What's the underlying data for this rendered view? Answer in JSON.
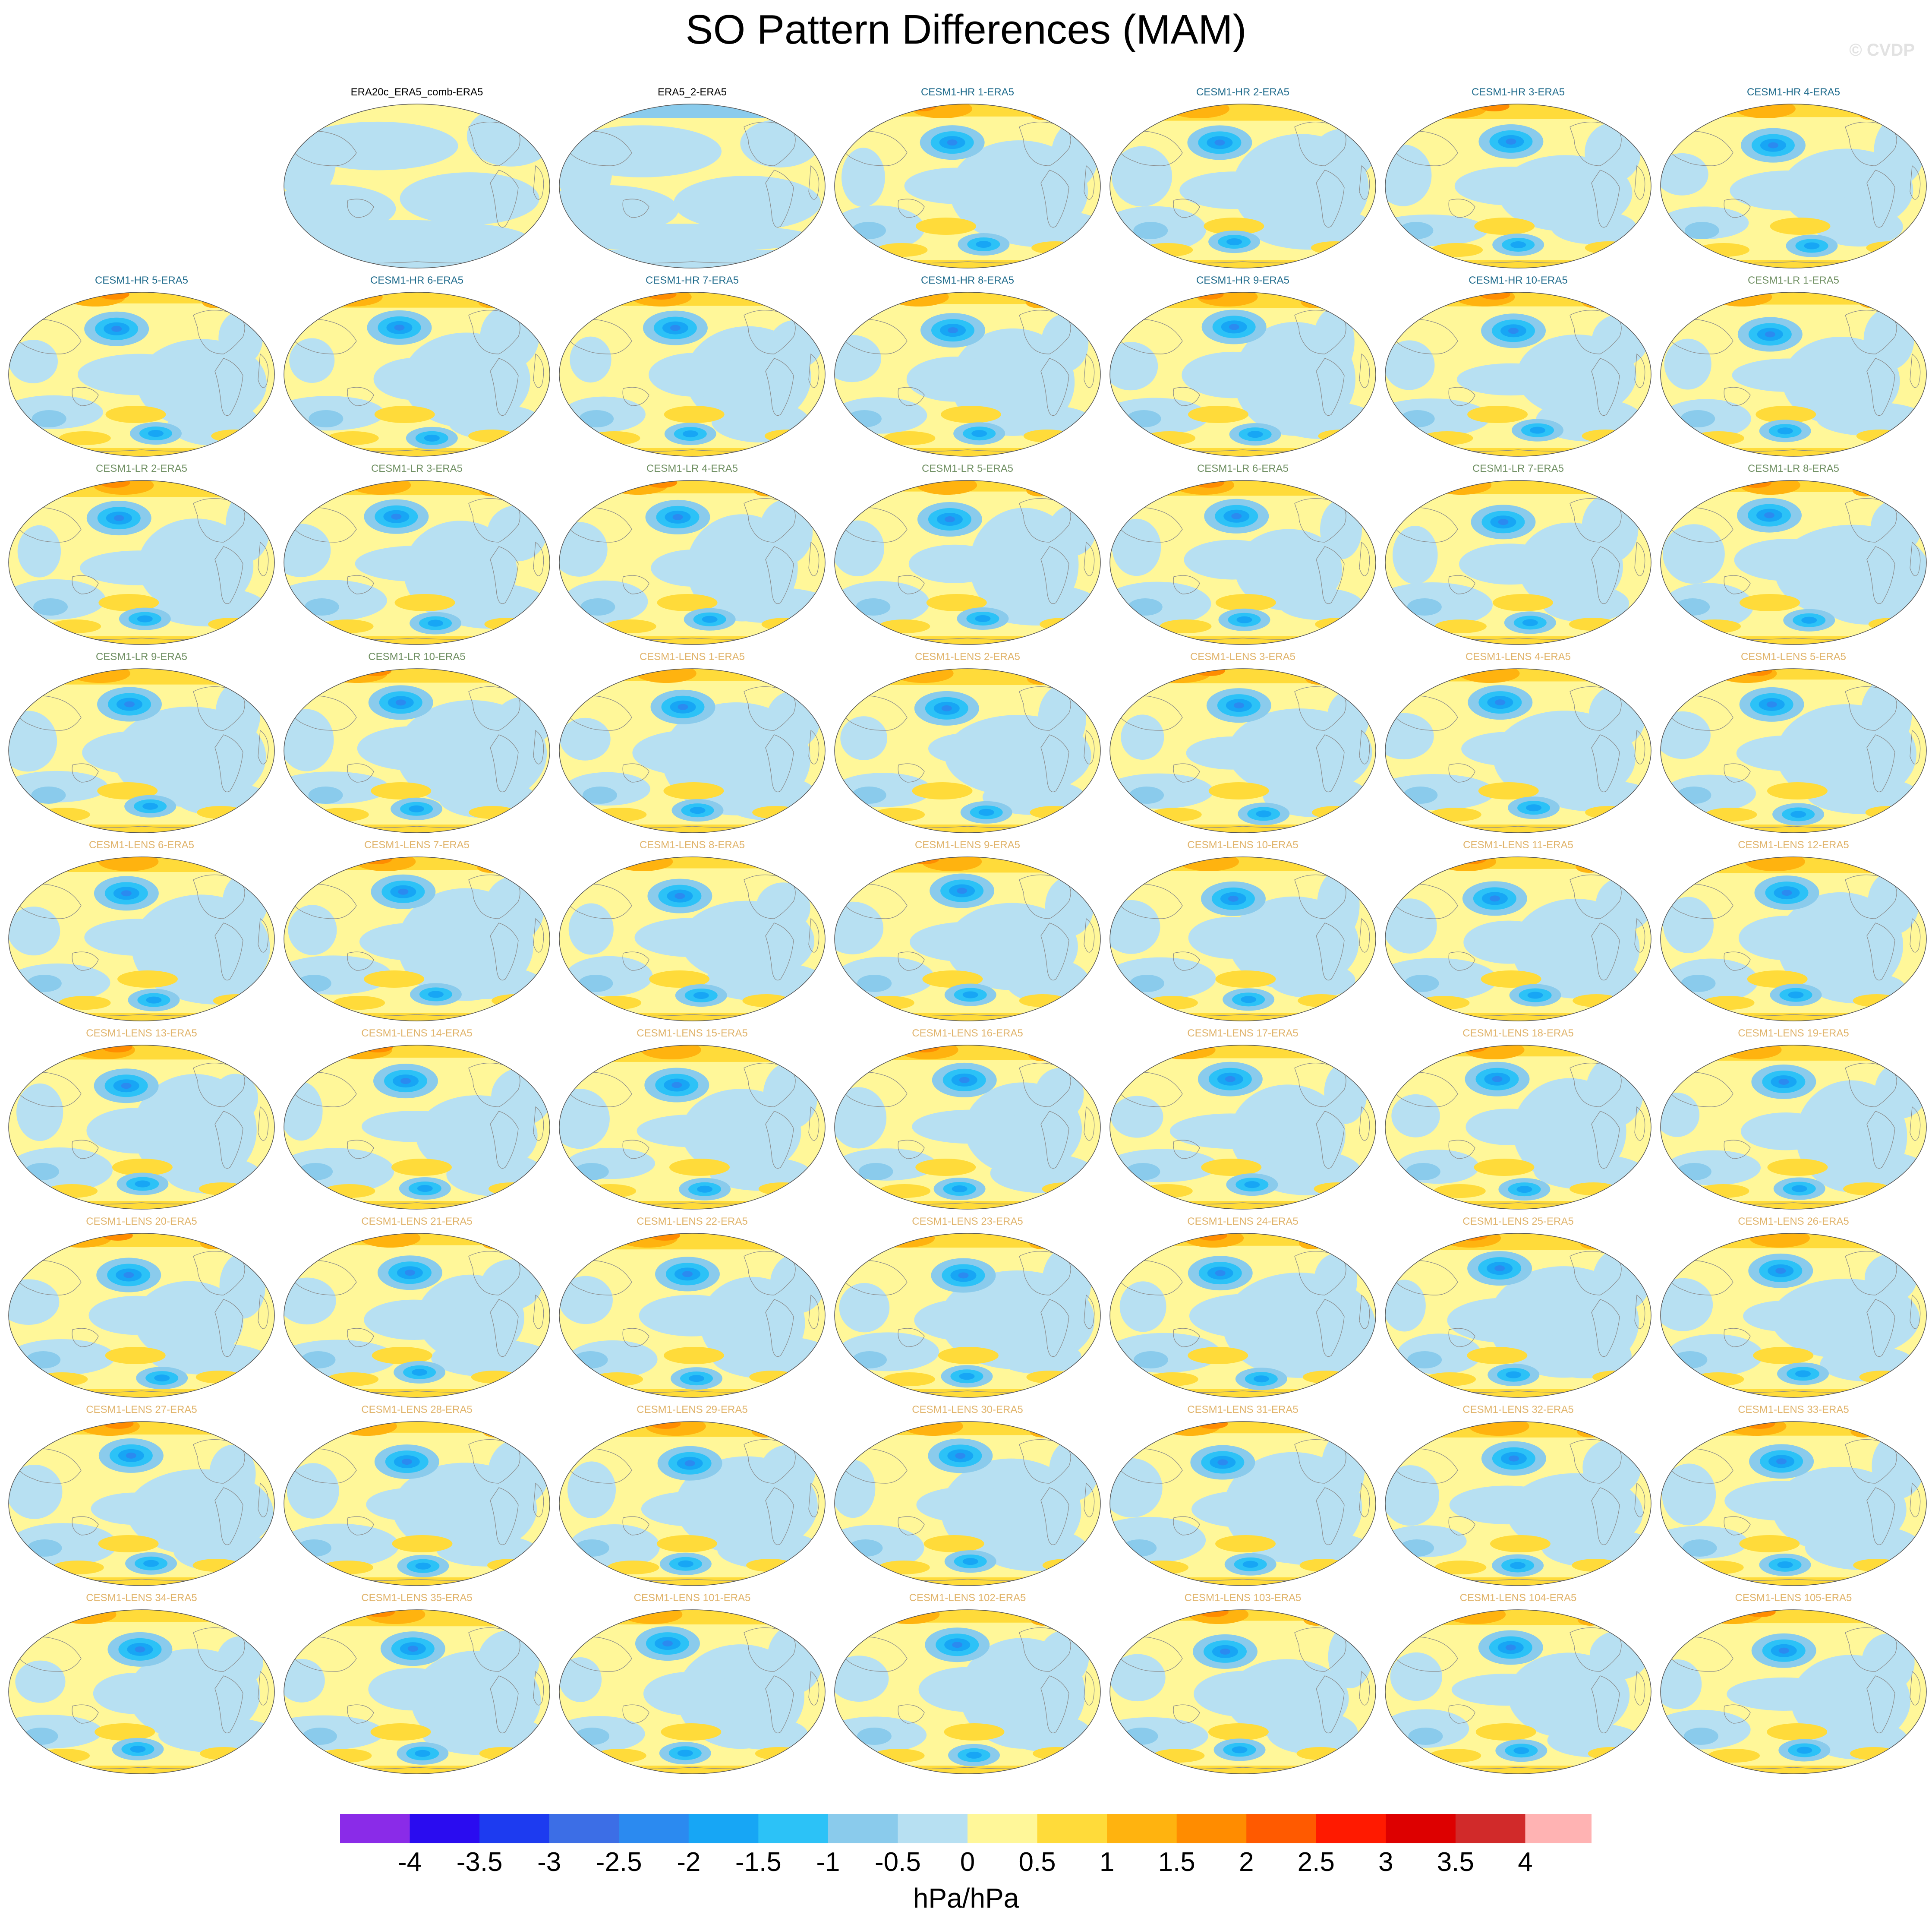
{
  "figure": {
    "title": "SO Pattern Differences (MAM)",
    "credit": "© CVDP"
  },
  "chart_data": {
    "type": "heatmap",
    "title": "SO Pattern Differences (MAM)",
    "variable_units": "hPa/hPa",
    "map_projection": "global robinson-like, Pacific centered",
    "grid": false,
    "legend": "bottom horizontal colorbar",
    "panels": [
      {
        "label": "ERA20c_ERA5_comb-ERA5",
        "group": "obs"
      },
      {
        "label": "ERA5_2-ERA5",
        "group": "obs"
      },
      {
        "label": "CESM1-HR 1-ERA5",
        "group": "hr"
      },
      {
        "label": "CESM1-HR 2-ERA5",
        "group": "hr"
      },
      {
        "label": "CESM1-HR 3-ERA5",
        "group": "hr"
      },
      {
        "label": "CESM1-HR 4-ERA5",
        "group": "hr"
      },
      {
        "label": "CESM1-HR 5-ERA5",
        "group": "hr"
      },
      {
        "label": "CESM1-HR 6-ERA5",
        "group": "hr"
      },
      {
        "label": "CESM1-HR 7-ERA5",
        "group": "hr"
      },
      {
        "label": "CESM1-HR 8-ERA5",
        "group": "hr"
      },
      {
        "label": "CESM1-HR 9-ERA5",
        "group": "hr"
      },
      {
        "label": "CESM1-HR 10-ERA5",
        "group": "hr"
      },
      {
        "label": "CESM1-LR 1-ERA5",
        "group": "lr"
      },
      {
        "label": "CESM1-LR 2-ERA5",
        "group": "lr"
      },
      {
        "label": "CESM1-LR 3-ERA5",
        "group": "lr"
      },
      {
        "label": "CESM1-LR 4-ERA5",
        "group": "lr"
      },
      {
        "label": "CESM1-LR 5-ERA5",
        "group": "lr"
      },
      {
        "label": "CESM1-LR 6-ERA5",
        "group": "lr"
      },
      {
        "label": "CESM1-LR 7-ERA5",
        "group": "lr"
      },
      {
        "label": "CESM1-LR 8-ERA5",
        "group": "lr"
      },
      {
        "label": "CESM1-LR 9-ERA5",
        "group": "lr"
      },
      {
        "label": "CESM1-LR 10-ERA5",
        "group": "lr"
      },
      {
        "label": "CESM1-LENS 1-ERA5",
        "group": "lens"
      },
      {
        "label": "CESM1-LENS 2-ERA5",
        "group": "lens"
      },
      {
        "label": "CESM1-LENS 3-ERA5",
        "group": "lens"
      },
      {
        "label": "CESM1-LENS 4-ERA5",
        "group": "lens"
      },
      {
        "label": "CESM1-LENS 5-ERA5",
        "group": "lens"
      },
      {
        "label": "CESM1-LENS 6-ERA5",
        "group": "lens"
      },
      {
        "label": "CESM1-LENS 7-ERA5",
        "group": "lens"
      },
      {
        "label": "CESM1-LENS 8-ERA5",
        "group": "lens"
      },
      {
        "label": "CESM1-LENS 9-ERA5",
        "group": "lens"
      },
      {
        "label": "CESM1-LENS 10-ERA5",
        "group": "lens"
      },
      {
        "label": "CESM1-LENS 11-ERA5",
        "group": "lens"
      },
      {
        "label": "CESM1-LENS 12-ERA5",
        "group": "lens"
      },
      {
        "label": "CESM1-LENS 13-ERA5",
        "group": "lens"
      },
      {
        "label": "CESM1-LENS 14-ERA5",
        "group": "lens"
      },
      {
        "label": "CESM1-LENS 15-ERA5",
        "group": "lens"
      },
      {
        "label": "CESM1-LENS 16-ERA5",
        "group": "lens"
      },
      {
        "label": "CESM1-LENS 17-ERA5",
        "group": "lens"
      },
      {
        "label": "CESM1-LENS 18-ERA5",
        "group": "lens"
      },
      {
        "label": "CESM1-LENS 19-ERA5",
        "group": "lens"
      },
      {
        "label": "CESM1-LENS 20-ERA5",
        "group": "lens"
      },
      {
        "label": "CESM1-LENS 21-ERA5",
        "group": "lens"
      },
      {
        "label": "CESM1-LENS 22-ERA5",
        "group": "lens"
      },
      {
        "label": "CESM1-LENS 23-ERA5",
        "group": "lens"
      },
      {
        "label": "CESM1-LENS 24-ERA5",
        "group": "lens"
      },
      {
        "label": "CESM1-LENS 25-ERA5",
        "group": "lens"
      },
      {
        "label": "CESM1-LENS 26-ERA5",
        "group": "lens"
      },
      {
        "label": "CESM1-LENS 27-ERA5",
        "group": "lens"
      },
      {
        "label": "CESM1-LENS 28-ERA5",
        "group": "lens"
      },
      {
        "label": "CESM1-LENS 29-ERA5",
        "group": "lens"
      },
      {
        "label": "CESM1-LENS 30-ERA5",
        "group": "lens"
      },
      {
        "label": "CESM1-LENS 31-ERA5",
        "group": "lens"
      },
      {
        "label": "CESM1-LENS 32-ERA5",
        "group": "lens"
      },
      {
        "label": "CESM1-LENS 33-ERA5",
        "group": "lens"
      },
      {
        "label": "CESM1-LENS 34-ERA5",
        "group": "lens"
      },
      {
        "label": "CESM1-LENS 35-ERA5",
        "group": "lens"
      },
      {
        "label": "CESM1-LENS 101-ERA5",
        "group": "lens"
      },
      {
        "label": "CESM1-LENS 102-ERA5",
        "group": "lens"
      },
      {
        "label": "CESM1-LENS 103-ERA5",
        "group": "lens"
      },
      {
        "label": "CESM1-LENS 104-ERA5",
        "group": "lens"
      },
      {
        "label": "CESM1-LENS 105-ERA5",
        "group": "lens"
      }
    ],
    "title_colors": {
      "obs": "#000000",
      "hr": "#1f6b8c",
      "lr": "#6f8f62",
      "lens": "#e0b36a"
    },
    "colorbar": {
      "labels": [
        "-4",
        "-3.5",
        "-3",
        "-2.5",
        "-2",
        "-1.5",
        "-1",
        "-0.5",
        "0",
        "0.5",
        "1",
        "1.5",
        "2",
        "2.5",
        "3",
        "3.5",
        "4"
      ],
      "colors": [
        "#8a2be8",
        "#2a0cf0",
        "#1d3bf0",
        "#3c6ee6",
        "#2b8af0",
        "#17a6f5",
        "#2cc2f7",
        "#8acbec",
        "#b7e0f2",
        "#fff799",
        "#ffdb3a",
        "#ffb30f",
        "#ff8c00",
        "#ff5a00",
        "#ff1a00",
        "#dd0000",
        "#d12a2a",
        "#ffb3b3"
      ],
      "unit": "hPa/hPa"
    }
  }
}
